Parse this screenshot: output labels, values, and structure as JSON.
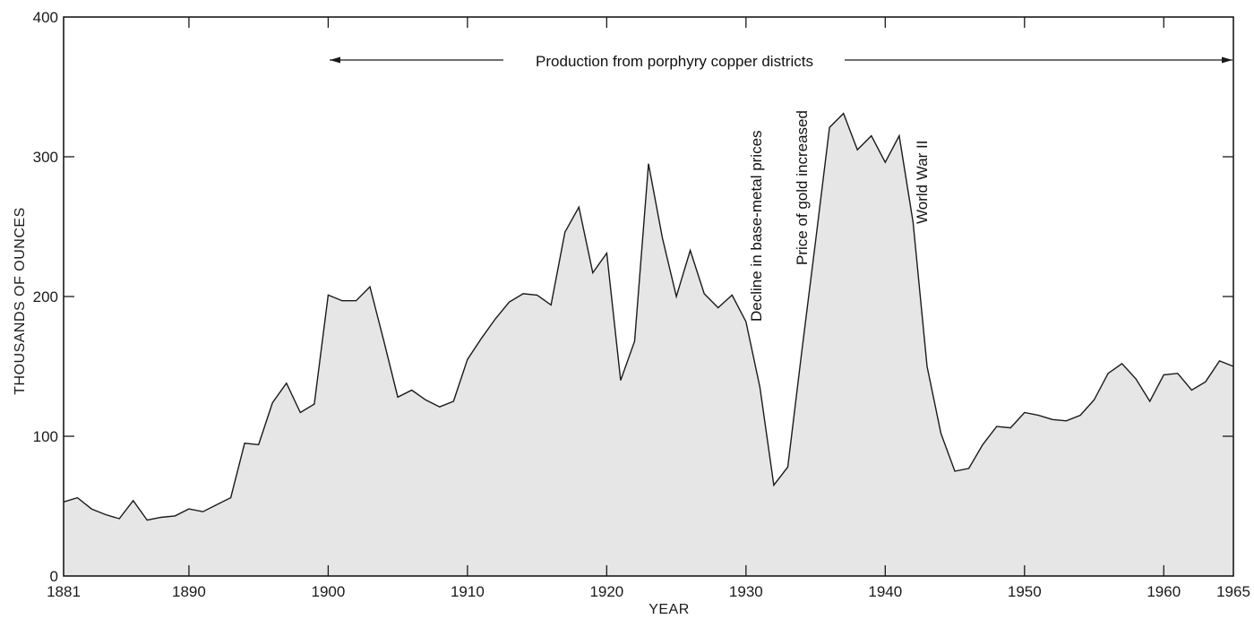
{
  "chart_data": {
    "type": "area",
    "title": "",
    "xlabel": "YEAR",
    "ylabel": "THOUSANDS OF OUNCES",
    "xlim": [
      1881,
      1965
    ],
    "ylim": [
      0,
      400
    ],
    "x_ticks": [
      1881,
      1890,
      1900,
      1910,
      1920,
      1930,
      1940,
      1950,
      1960,
      1965
    ],
    "y_ticks": [
      0,
      100,
      200,
      300,
      400
    ],
    "grid": false,
    "fill_color": "#e6e6e6",
    "line_color": "#1a1a1a",
    "series": [
      {
        "x": [
          1881,
          1882,
          1883,
          1884,
          1885,
          1886,
          1887,
          1888,
          1889,
          1890,
          1891,
          1892,
          1893,
          1894,
          1895,
          1896,
          1897,
          1898,
          1899,
          1900,
          1901,
          1902,
          1903,
          1904,
          1905,
          1906,
          1907,
          1908,
          1909,
          1910,
          1911,
          1912,
          1913,
          1914,
          1915,
          1916,
          1917,
          1918,
          1919,
          1920,
          1921,
          1922,
          1923,
          1924,
          1925,
          1926,
          1927,
          1928,
          1929,
          1930,
          1931,
          1932,
          1933,
          1934,
          1935,
          1936,
          1937,
          1938,
          1939,
          1940,
          1941,
          1942,
          1943,
          1944,
          1945,
          1946,
          1947,
          1948,
          1949,
          1950,
          1951,
          1952,
          1953,
          1954,
          1955,
          1956,
          1957,
          1958,
          1959,
          1960,
          1961,
          1962,
          1963,
          1964,
          1965
        ],
        "values": [
          53,
          56,
          48,
          44,
          41,
          54,
          40,
          42,
          43,
          48,
          46,
          51,
          56,
          95,
          94,
          124,
          138,
          117,
          123,
          201,
          197,
          197,
          207,
          168,
          128,
          133,
          126,
          121,
          125,
          155,
          170,
          184,
          196,
          202,
          201,
          194,
          246,
          264,
          217,
          231,
          140,
          168,
          295,
          242,
          200,
          233,
          202,
          192,
          201,
          182,
          135,
          65,
          78,
          160,
          240,
          321,
          331,
          305,
          315,
          296,
          315,
          253,
          150,
          102,
          75,
          77,
          94,
          107,
          106,
          117,
          115,
          112,
          111,
          115,
          126,
          145,
          152,
          141,
          125,
          144,
          145,
          133,
          139,
          154,
          150
        ]
      }
    ],
    "annotations": {
      "porphyry": "Production from porphyry copper districts",
      "base_metal": "Decline in base-metal prices",
      "gold_price": "Price of gold increased",
      "ww2": "World War II"
    }
  }
}
